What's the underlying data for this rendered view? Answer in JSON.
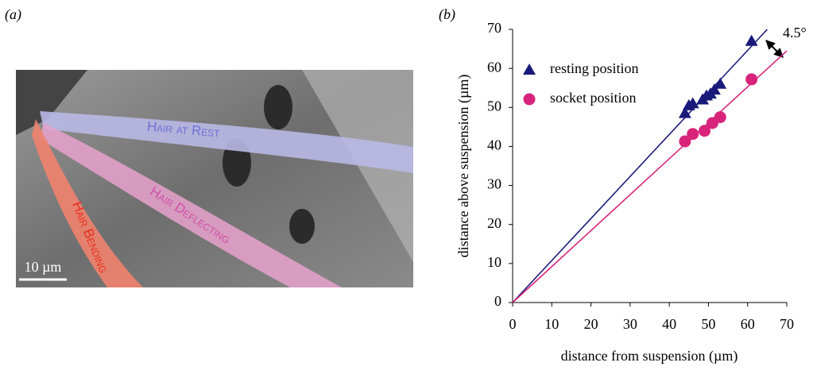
{
  "panel_a": {
    "label": "(a)",
    "annotations": [
      "Hair at Rest",
      "Hair Deflecting",
      "Hair Bending"
    ],
    "scale_bar": "10 µm"
  },
  "chart_data": {
    "type": "scatter",
    "panel_label": "(b)",
    "xlabel": "distance from suspension (µm)",
    "ylabel": "distance above suspension (µm)",
    "xlim": [
      0,
      70
    ],
    "ylim": [
      0,
      70
    ],
    "xticks": [
      0,
      10,
      20,
      30,
      40,
      50,
      60,
      70
    ],
    "yticks": [
      0,
      10,
      20,
      30,
      40,
      50,
      60,
      70
    ],
    "grid": false,
    "legend": "upper left",
    "series": [
      {
        "name": "resting position",
        "color": "#1a1a7a",
        "marker": "triangle",
        "x": [
          44,
          45,
          46,
          48.5,
          49.5,
          50.5,
          51.5,
          53,
          61
        ],
        "values": [
          48.5,
          50.5,
          51,
          52,
          53,
          53.5,
          54.5,
          56,
          67
        ]
      },
      {
        "name": "socket position",
        "color": "#d8247a",
        "marker": "circle",
        "x": [
          44,
          46,
          49,
          51,
          53,
          61
        ],
        "values": [
          41.3,
          43.2,
          44,
          46,
          47.5,
          57.2
        ]
      }
    ],
    "trendlines": [
      {
        "color": "#1a1a7a",
        "x": [
          0,
          65
        ],
        "y": [
          0,
          70
        ]
      },
      {
        "color": "#d8247a",
        "x": [
          0,
          70
        ],
        "y": [
          0,
          64.5
        ]
      }
    ],
    "annotation": "4.5°"
  }
}
